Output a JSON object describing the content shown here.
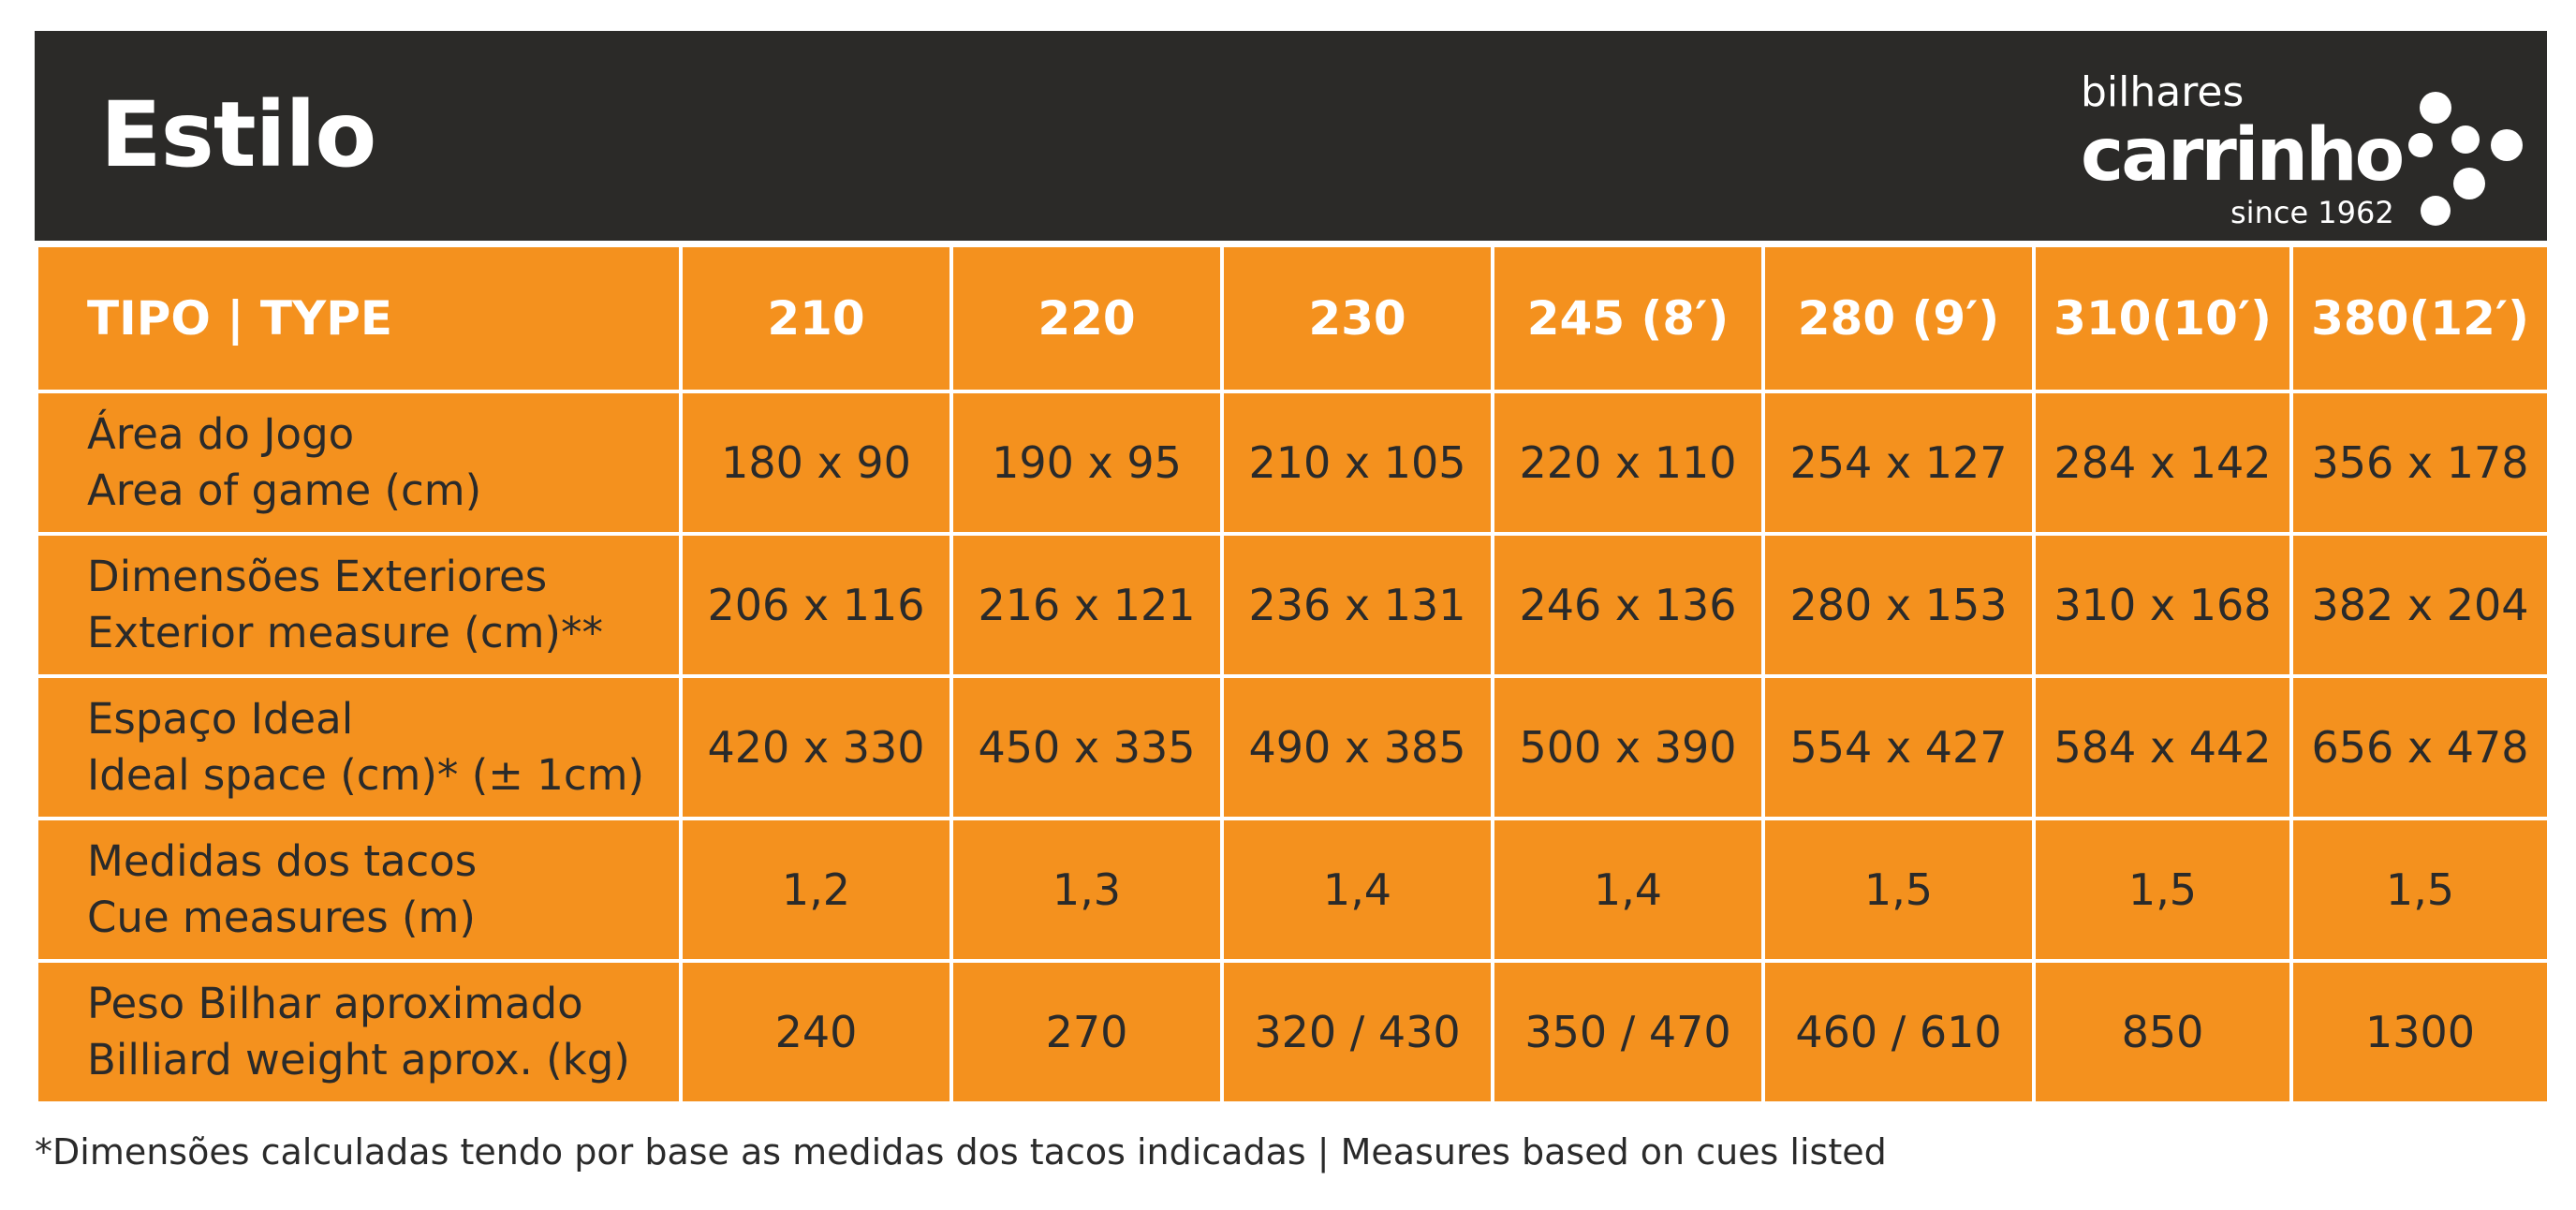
{
  "header": {
    "title": "Estilo",
    "background": "#2b2a28"
  },
  "logo": {
    "line1": "bilhares",
    "line2": "carrinho",
    "line3": "since 1962"
  },
  "table": {
    "cell_color": "#f4911e",
    "header_label": "TIPO | TYPE",
    "columns": [
      "210",
      "220",
      "230",
      "245 (8′)",
      "280 (9′)",
      "310(10′)",
      "380(12′)"
    ],
    "rows": [
      {
        "label_pt": "Área do Jogo",
        "label_en": "Area of game (cm)",
        "values": [
          "180 x 90",
          "190 x 95",
          "210 x 105",
          "220 x 110",
          "254 x 127",
          "284 x 142",
          "356 x 178"
        ]
      },
      {
        "label_pt": "Dimensões Exteriores",
        "label_en": "Exterior measure (cm)**",
        "values": [
          "206 x 116",
          "216 x 121",
          "236 x 131",
          "246 x 136",
          "280 x 153",
          "310 x 168",
          "382 x 204"
        ]
      },
      {
        "label_pt": "Espaço Ideal",
        "label_en": "Ideal space (cm)* (± 1cm)",
        "values": [
          "420 x 330",
          "450 x 335",
          "490 x 385",
          "500 x 390",
          "554 x 427",
          "584 x 442",
          "656 x 478"
        ]
      },
      {
        "label_pt": "Medidas dos tacos",
        "label_en": "Cue measures (m)",
        "values": [
          "1,2",
          "1,3",
          "1,4",
          "1,4",
          "1,5",
          "1,5",
          "1,5"
        ]
      },
      {
        "label_pt": "Peso Bilhar aproximado",
        "label_en": "Billiard weight aprox. (kg)",
        "values": [
          "240",
          "270",
          "320 / 430",
          "350 / 470",
          "460 / 610",
          "850",
          "1300"
        ]
      }
    ]
  },
  "footnote": "*Dimensões calculadas tendo por base as medidas dos tacos indicadas | Measures based on cues listed"
}
